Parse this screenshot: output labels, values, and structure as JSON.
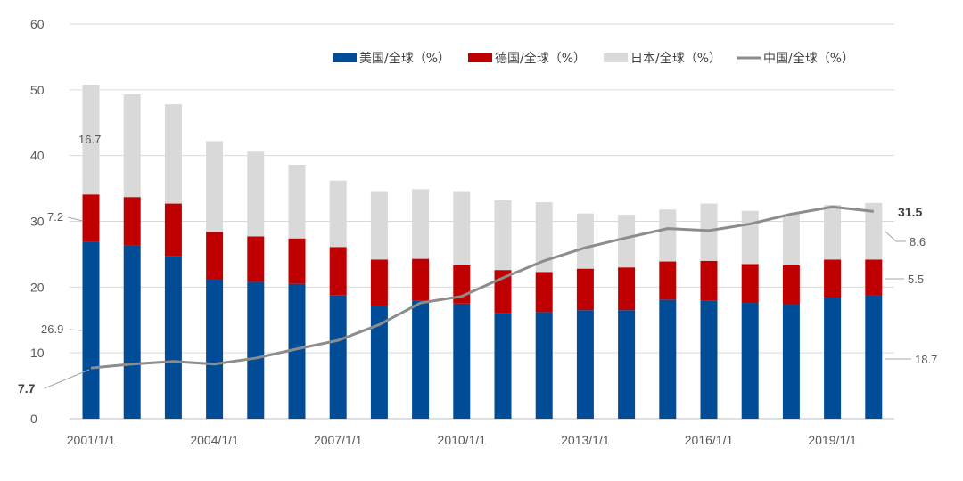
{
  "chart_data": {
    "type": "bar",
    "stacked": true,
    "categories": [
      "2001/1/1",
      "2002/1/1",
      "2003/1/1",
      "2004/1/1",
      "2005/1/1",
      "2006/1/1",
      "2007/1/1",
      "2008/1/1",
      "2009/1/1",
      "2010/1/1",
      "2011/1/1",
      "2012/1/1",
      "2013/1/1",
      "2014/1/1",
      "2015/1/1",
      "2016/1/1",
      "2017/1/1",
      "2018/1/1",
      "2019/1/1",
      "2020/1/1"
    ],
    "x_tick_labels": [
      "2001/1/1",
      "2004/1/1",
      "2007/1/1",
      "2010/1/1",
      "2013/1/1",
      "2016/1/1",
      "2019/1/1"
    ],
    "y_ticks": [
      "0",
      "10",
      "20",
      "30",
      "40",
      "50",
      "60"
    ],
    "ylim": [
      0,
      60
    ],
    "grid": true,
    "legend_position": "top",
    "series": [
      {
        "name": "美国/全球（%）",
        "kind": "bar",
        "color": "#004C97",
        "values": [
          26.9,
          26.4,
          24.7,
          21.2,
          20.8,
          20.5,
          18.8,
          17.1,
          17.9,
          17.5,
          16.1,
          16.2,
          16.5,
          16.5,
          18.1,
          17.9,
          17.6,
          17.4,
          18.4,
          18.7
        ]
      },
      {
        "name": "德国/全球（%）",
        "kind": "bar",
        "color": "#C00000",
        "values": [
          7.2,
          7.3,
          8.0,
          7.2,
          6.9,
          6.9,
          7.3,
          7.1,
          6.4,
          5.8,
          6.5,
          6.1,
          6.3,
          6.5,
          5.8,
          6.1,
          5.9,
          5.9,
          5.8,
          5.5
        ]
      },
      {
        "name": "日本/全球（%）",
        "kind": "bar",
        "color": "#D9D9D9",
        "values": [
          16.7,
          15.6,
          15.1,
          13.8,
          12.9,
          11.2,
          10.1,
          10.4,
          10.6,
          11.3,
          10.6,
          10.6,
          8.4,
          8.0,
          7.9,
          8.7,
          8.1,
          7.8,
          8.3,
          8.6
        ]
      },
      {
        "name": "中国/全球（%）",
        "kind": "line",
        "color": "#8C8C8C",
        "values": [
          7.7,
          8.3,
          8.7,
          8.3,
          9.2,
          10.6,
          11.9,
          14.3,
          17.6,
          18.6,
          21.4,
          24.0,
          26.0,
          27.5,
          28.9,
          28.6,
          29.6,
          31.1,
          32.2,
          31.5
        ]
      }
    ],
    "annotations": [
      {
        "text": "16.7",
        "style": "normal"
      },
      {
        "text": "7.2",
        "style": "normal"
      },
      {
        "text": "26.9",
        "style": "normal"
      },
      {
        "text": "7.7",
        "style": "bold"
      },
      {
        "text": "31.5",
        "style": "bold"
      },
      {
        "text": "8.6",
        "style": "normal"
      },
      {
        "text": "5.5",
        "style": "normal"
      },
      {
        "text": "18.7",
        "style": "normal"
      }
    ]
  }
}
